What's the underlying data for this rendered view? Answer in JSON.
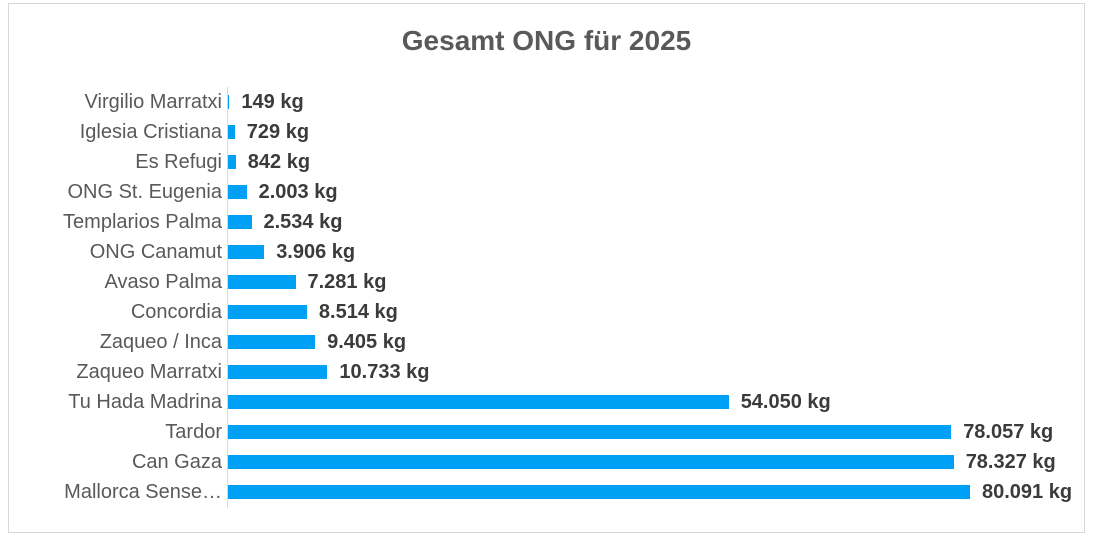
{
  "chart_data": {
    "type": "bar",
    "orientation": "horizontal",
    "title": "Gesamt ONG für 2025",
    "categories": [
      "Virgilio Marratxi",
      "Iglesia Cristiana",
      "Es Refugi",
      "ONG St. Eugenia",
      "Templarios Palma",
      "ONG Canamut",
      "Avaso Palma",
      "Concordia",
      "Zaqueo / Inca",
      "Zaqueo Marratxi",
      "Tu Hada Madrina",
      "Tardor",
      "Can Gaza",
      "Mallorca Sense…"
    ],
    "values": [
      149,
      729,
      842,
      2003,
      2534,
      3906,
      7281,
      8514,
      9405,
      10733,
      54050,
      78057,
      78327,
      80091
    ],
    "value_labels": [
      "149 kg",
      "729 kg",
      "842 kg",
      "2.003 kg",
      "2.534 kg",
      "3.906 kg",
      "7.281 kg",
      "8.514 kg",
      "9.405 kg",
      "10.733 kg",
      "54.050 kg",
      "78.057 kg",
      "78.327 kg",
      "80.091 kg"
    ],
    "unit": "kg",
    "xlim": [
      0,
      80091
    ],
    "grid": false,
    "legend_position": "none",
    "bar_color": "#00A0F5",
    "title_color": "#595959",
    "category_label_color": "#595959",
    "value_label_color": "#3B3B3B",
    "axis_line_color": "#D9D9D9",
    "frame_border_color": "#D8D8D8"
  }
}
